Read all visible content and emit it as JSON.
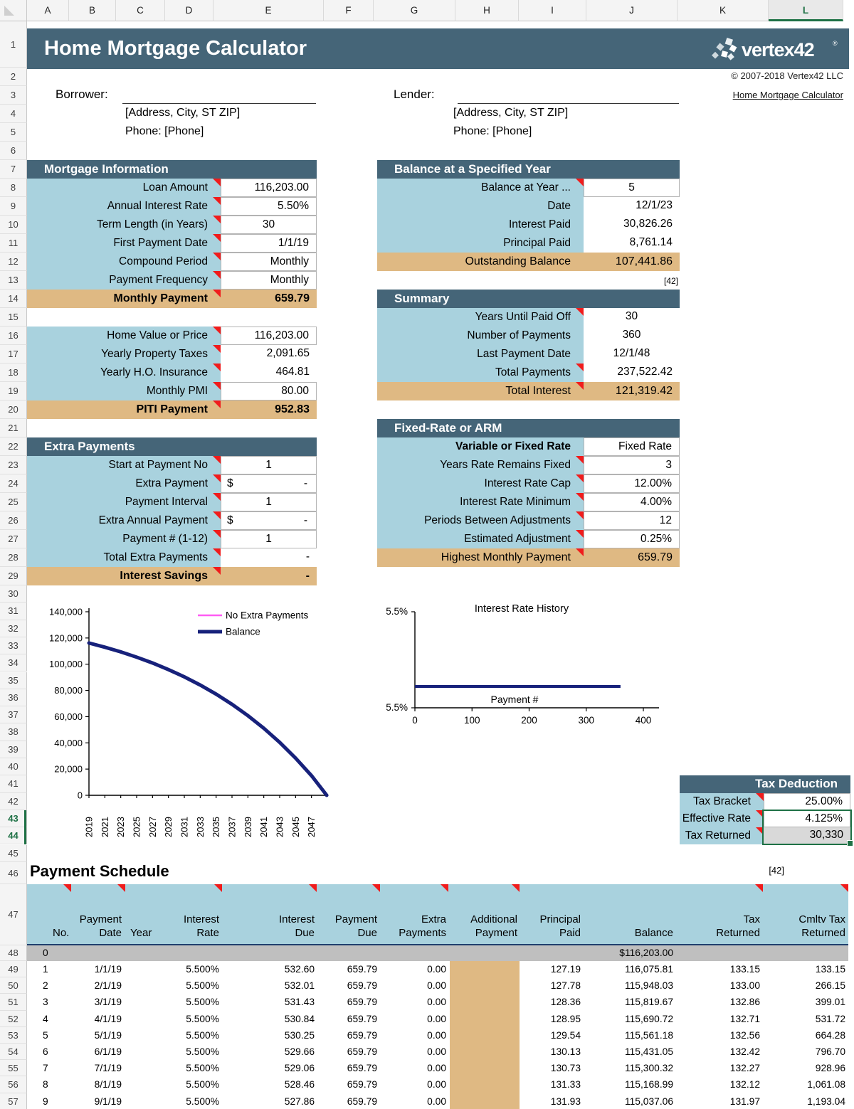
{
  "chrome": {
    "columns": [
      "A",
      "B",
      "C",
      "D",
      "E",
      "F",
      "G",
      "H",
      "I",
      "J",
      "K",
      "L"
    ],
    "selected_column": "L",
    "row_count": 57,
    "selected_rows": [
      43,
      44
    ],
    "accent_green": "#1e7145"
  },
  "header": {
    "title": "Home Mortgage Calculator",
    "logo_text": "vertex42",
    "logo_reg": "®",
    "copyright": "© 2007-2018 Vertex42 LLC",
    "link": "Home Mortgage Calculator"
  },
  "parties": {
    "borrower_label": "Borrower:",
    "lender_label": "Lender:",
    "address_placeholder": "[Address, City, ST ZIP]",
    "phone_placeholder": "Phone: [Phone]"
  },
  "colors": {
    "dark_header": "#456578",
    "light_blue": "#a9d2de",
    "tan": "#dfb983",
    "gray_cell": "#d9d9d9",
    "gray_row": "#bfbfbf",
    "navy": "#17217b",
    "magenta": "#ff5cf4",
    "red_marker": "#f01c1c"
  },
  "sections": {
    "mortgage_info": {
      "title": "Mortgage Information",
      "rows": [
        {
          "label": "Loan Amount",
          "value": "116,203.00",
          "tri": true,
          "cell": "input",
          "align": "right"
        },
        {
          "label": "Annual Interest Rate",
          "value": "5.50%",
          "tri": true,
          "cell": "input",
          "align": "right"
        },
        {
          "label": "Term Length (in Years)",
          "value": "30",
          "tri": true,
          "cell": "input",
          "align": "center"
        },
        {
          "label": "First Payment Date",
          "value": "1/1/19",
          "tri": true,
          "cell": "input",
          "align": "right"
        },
        {
          "label": "Compound Period",
          "value": "Monthly",
          "tri": true,
          "cell": "input",
          "align": "right"
        },
        {
          "label": "Payment Frequency",
          "value": "Monthly",
          "tri": true,
          "cell": "input",
          "align": "right"
        }
      ],
      "total": {
        "label": "Monthly Payment",
        "value": "659.79",
        "tri": true,
        "bold": true
      }
    },
    "home_value": {
      "rows": [
        {
          "label": "Home Value or Price",
          "value": "116,203.00",
          "tri": true,
          "cell": "input",
          "align": "right"
        },
        {
          "label": "Yearly Property Taxes",
          "value": "2,091.65",
          "tri": true,
          "cell": "plain",
          "align": "right"
        },
        {
          "label": "Yearly H.O. Insurance",
          "value": "464.81",
          "tri": true,
          "cell": "plain",
          "align": "right"
        },
        {
          "label": "Monthly PMI",
          "value": "80.00",
          "tri": true,
          "cell": "input",
          "align": "right"
        }
      ],
      "total": {
        "label": "PITI Payment",
        "value": "952.83",
        "tri": true,
        "bold": true
      }
    },
    "extra_payments": {
      "title": "Extra Payments",
      "rows": [
        {
          "label": "Start at Payment No",
          "value": "1",
          "tri": true,
          "cell": "input",
          "align": "center"
        },
        {
          "label": "Extra Payment",
          "value": "-",
          "prefix": "$",
          "tri": true,
          "cell": "input",
          "align": "right"
        },
        {
          "label": "Payment Interval",
          "value": "1",
          "tri": true,
          "cell": "input",
          "align": "center"
        },
        {
          "label": "Extra Annual Payment",
          "value": "-",
          "prefix": "$",
          "tri": true,
          "cell": "input",
          "align": "right"
        },
        {
          "label": "Payment # (1-12)",
          "value": "1",
          "tri": true,
          "cell": "input",
          "align": "center"
        },
        {
          "label": "Total Extra Payments",
          "value": "-",
          "tri": true,
          "cell": "plain",
          "align": "right"
        }
      ],
      "total": {
        "label": "Interest Savings",
        "value": "-",
        "tri": true,
        "bold": true
      }
    },
    "balance_year": {
      "title": "Balance at a Specified Year",
      "rows": [
        {
          "label": "Balance at Year ...",
          "value": "5",
          "tri": true,
          "cell": "input",
          "align": "center"
        },
        {
          "label": "Date",
          "value": "12/1/23",
          "tri": false,
          "cell": "plain",
          "align": "right"
        },
        {
          "label": "Interest Paid",
          "value": "30,826.26",
          "tri": false,
          "cell": "plain",
          "align": "right"
        },
        {
          "label": "Principal Paid",
          "value": "8,761.14",
          "tri": false,
          "cell": "plain",
          "align": "right"
        }
      ],
      "total": {
        "label": "Outstanding Balance",
        "value": "107,441.86",
        "tri": false,
        "bold": false
      },
      "note": "[42]"
    },
    "summary": {
      "title": "Summary",
      "rows": [
        {
          "label": "Years Until Paid Off",
          "value": "30",
          "tri": true,
          "cell": "plain",
          "align": "center"
        },
        {
          "label": "Number of Payments",
          "value": "360",
          "tri": false,
          "cell": "plain",
          "align": "center"
        },
        {
          "label": "Last Payment Date",
          "value": "12/1/48",
          "tri": false,
          "cell": "plain",
          "align": "center"
        },
        {
          "label": "Total Payments",
          "value": "237,522.42",
          "tri": true,
          "cell": "plain",
          "align": "right"
        }
      ],
      "total": {
        "label": "Total Interest",
        "value": "121,319.42",
        "tri": true,
        "bold": false
      }
    },
    "arm": {
      "title": "Fixed-Rate or ARM",
      "rows": [
        {
          "label": "Variable or Fixed Rate",
          "value": "Fixed Rate",
          "tri": false,
          "cell": "input",
          "align": "right",
          "label_bold": true
        },
        {
          "label": "Years Rate Remains Fixed",
          "value": "3",
          "tri": true,
          "cell": "input",
          "align": "right"
        },
        {
          "label": "Interest Rate Cap",
          "value": "12.00%",
          "tri": true,
          "cell": "input",
          "align": "right"
        },
        {
          "label": "Interest Rate Minimum",
          "value": "4.00%",
          "tri": true,
          "cell": "input",
          "align": "right"
        },
        {
          "label": "Periods Between Adjustments",
          "value": "12",
          "tri": true,
          "cell": "input",
          "align": "right"
        },
        {
          "label": "Estimated Adjustment",
          "value": "0.25%",
          "tri": true,
          "cell": "input",
          "align": "right"
        }
      ],
      "total": {
        "label": "Highest Monthly Payment",
        "value": "659.79",
        "tri": true,
        "bold": false
      }
    },
    "tax": {
      "title": "Tax Deduction",
      "rows": [
        {
          "label": "Tax Bracket",
          "value": "25.00%",
          "tri": true,
          "cell": "input",
          "align": "right"
        },
        {
          "label": "Effective Rate",
          "value": "4.125%",
          "tri": true,
          "cell": "input",
          "align": "right"
        },
        {
          "label": "Tax Returned",
          "value": "30,330",
          "tri": true,
          "cell": "gray",
          "align": "right"
        }
      ]
    }
  },
  "chart_data": [
    {
      "id": "balance-chart",
      "type": "line",
      "title": "",
      "legend": [
        {
          "name": "No Extra Payments",
          "color": "#ff5cf4",
          "width": 2.5
        },
        {
          "name": "Balance",
          "color": "#17217b",
          "width": 5
        }
      ],
      "ylabel": "",
      "xlabel": "",
      "ylim": [
        0,
        140000
      ],
      "ytick_labels": [
        "140,000",
        "120,000",
        "100,000",
        "80,000",
        "60,000",
        "40,000",
        "20,000",
        "0"
      ],
      "xtick_labels": [
        "2019",
        "2021",
        "2023",
        "2025",
        "2027",
        "2029",
        "2031",
        "2033",
        "2035",
        "2037",
        "2039",
        "2041",
        "2043",
        "2045",
        "2047"
      ],
      "x_range": [
        2019,
        2049
      ],
      "series": [
        {
          "name": "No Extra Payments",
          "color": "#ff5cf4",
          "width": 2.5,
          "points": [
            [
              2019,
              116203
            ],
            [
              2021,
              112983
            ],
            [
              2023,
              109390
            ],
            [
              2025,
              105380
            ],
            [
              2027,
              100906
            ],
            [
              2029,
              95906
            ],
            [
              2031,
              90338
            ],
            [
              2033,
              84116
            ],
            [
              2035,
              77177
            ],
            [
              2037,
              69430
            ],
            [
              2039,
              60784
            ],
            [
              2041,
              51141
            ],
            [
              2043,
              40376
            ],
            [
              2045,
              28365
            ],
            [
              2047,
              14957
            ],
            [
              2048.92,
              0
            ]
          ]
        },
        {
          "name": "Balance",
          "color": "#17217b",
          "width": 5,
          "points": [
            [
              2019,
              116203
            ],
            [
              2021,
              112983
            ],
            [
              2023,
              109390
            ],
            [
              2025,
              105380
            ],
            [
              2027,
              100906
            ],
            [
              2029,
              95906
            ],
            [
              2031,
              90338
            ],
            [
              2033,
              84116
            ],
            [
              2035,
              77177
            ],
            [
              2037,
              69430
            ],
            [
              2039,
              60784
            ],
            [
              2041,
              51141
            ],
            [
              2043,
              40376
            ],
            [
              2045,
              28365
            ],
            [
              2047,
              14957
            ],
            [
              2048.92,
              0
            ]
          ]
        }
      ],
      "legend_position": "top-right",
      "grid": false
    },
    {
      "id": "interest-rate-history",
      "type": "line",
      "title": "Interest Rate History",
      "xlabel": "Payment #",
      "y_top_label": "5.5%",
      "y_bottom_label": "5.5%",
      "xtick_labels": [
        "0",
        "100",
        "200",
        "300",
        "400"
      ],
      "x_range": [
        0,
        400
      ],
      "series": [
        {
          "name": "Rate",
          "color": "#17217b",
          "width": 4,
          "points": [
            [
              0,
              5.5
            ],
            [
              360,
              5.5
            ]
          ]
        }
      ],
      "grid": false
    }
  ],
  "notes": {
    "balance_ref": "[42]",
    "schedule_ref": "[42]"
  },
  "schedule": {
    "title": "Payment Schedule",
    "columns": [
      {
        "line1": "",
        "line2": "No."
      },
      {
        "line1": "Payment",
        "line2": "Date"
      },
      {
        "line1": "",
        "line2": "Year"
      },
      {
        "line1": "Interest",
        "line2": "Rate"
      },
      {
        "line1": "Interest",
        "line2": "Due"
      },
      {
        "line1": "Payment",
        "line2": "Due"
      },
      {
        "line1": "Extra",
        "line2": "Payments"
      },
      {
        "line1": "Additional",
        "line2": "Payment"
      },
      {
        "line1": "Principal",
        "line2": "Paid"
      },
      {
        "line1": "",
        "line2": "Balance"
      },
      {
        "line1": "Tax",
        "line2": "Returned"
      },
      {
        "line1": "Cmltv Tax",
        "line2": "Returned"
      }
    ],
    "row0": [
      "0",
      "",
      "",
      "",
      "",
      "",
      "",
      "",
      "",
      "$116,203.00",
      "",
      ""
    ],
    "rows": [
      [
        "1",
        "1/1/19",
        "",
        "5.500%",
        "532.60",
        "659.79",
        "0.00",
        "",
        "127.19",
        "116,075.81",
        "133.15",
        "133.15"
      ],
      [
        "2",
        "2/1/19",
        "",
        "5.500%",
        "532.01",
        "659.79",
        "0.00",
        "",
        "127.78",
        "115,948.03",
        "133.00",
        "266.15"
      ],
      [
        "3",
        "3/1/19",
        "",
        "5.500%",
        "531.43",
        "659.79",
        "0.00",
        "",
        "128.36",
        "115,819.67",
        "132.86",
        "399.01"
      ],
      [
        "4",
        "4/1/19",
        "",
        "5.500%",
        "530.84",
        "659.79",
        "0.00",
        "",
        "128.95",
        "115,690.72",
        "132.71",
        "531.72"
      ],
      [
        "5",
        "5/1/19",
        "",
        "5.500%",
        "530.25",
        "659.79",
        "0.00",
        "",
        "129.54",
        "115,561.18",
        "132.56",
        "664.28"
      ],
      [
        "6",
        "6/1/19",
        "",
        "5.500%",
        "529.66",
        "659.79",
        "0.00",
        "",
        "130.13",
        "115,431.05",
        "132.42",
        "796.70"
      ],
      [
        "7",
        "7/1/19",
        "",
        "5.500%",
        "529.06",
        "659.79",
        "0.00",
        "",
        "130.73",
        "115,300.32",
        "132.27",
        "928.96"
      ],
      [
        "8",
        "8/1/19",
        "",
        "5.500%",
        "528.46",
        "659.79",
        "0.00",
        "",
        "131.33",
        "115,168.99",
        "132.12",
        "1,061.08"
      ],
      [
        "9",
        "9/1/19",
        "",
        "5.500%",
        "527.86",
        "659.79",
        "0.00",
        "",
        "131.93",
        "115,037.06",
        "131.97",
        "1,193.04"
      ]
    ]
  }
}
